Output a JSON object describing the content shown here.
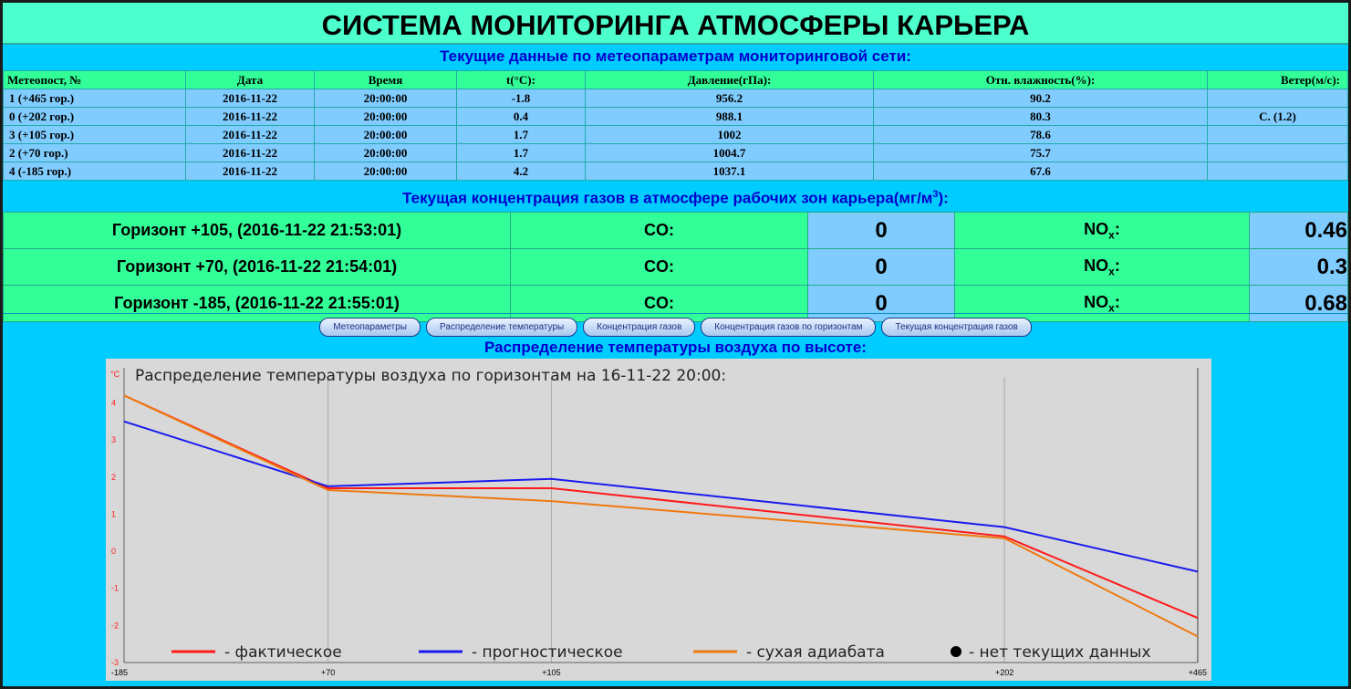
{
  "title": "СИСТЕМА МОНИТОРИНГА АТМОСФЕРЫ КАРЬЕРА",
  "meteo": {
    "heading": "Текущие данные по метеопараметрам мониторинговой сети:",
    "columns": [
      "Метеопост, №",
      "Дата",
      "Время",
      "t(°C):",
      "Давление(гПа):",
      "Отн. влажность(%):",
      "Ветер(м/с):"
    ],
    "rows": [
      [
        "1 (+465 гор.)",
        "2016-11-22",
        "20:00:00",
        "-1.8",
        "956.2",
        "90.2",
        ""
      ],
      [
        "0 (+202 гор.)",
        "2016-11-22",
        "20:00:00",
        "0.4",
        "988.1",
        "80.3",
        "С. (1.2)"
      ],
      [
        "3 (+105 гор.)",
        "2016-11-22",
        "20:00:00",
        "1.7",
        "1002",
        "78.6",
        ""
      ],
      [
        "2 (+70 гор.)",
        "2016-11-22",
        "20:00:00",
        "1.7",
        "1004.7",
        "75.7",
        ""
      ],
      [
        "4 (-185 гор.)",
        "2016-11-22",
        "20:00:00",
        "4.2",
        "1037.1",
        "67.6",
        ""
      ]
    ]
  },
  "gas": {
    "heading": "Текущая концентрация газов в атмосфере рабочих зон карьера(мг/м",
    "heading_sup": "3",
    "heading_end": "):",
    "co_label": "CO:",
    "nox_label": "NO",
    "nox_sub": "x",
    "nox_colon": ":",
    "rows": [
      {
        "name": "Горизонт +105, (2016-11-22 21:53:01)",
        "co": "0",
        "nox": "0.46"
      },
      {
        "name": "Горизонт +70, (2016-11-22 21:54:01)",
        "co": "0",
        "nox": "0.3"
      },
      {
        "name": "Горизонт -185, (2016-11-22 21:55:01)",
        "co": "0",
        "nox": "0.68"
      }
    ]
  },
  "nav": {
    "buttons": [
      "Метеопараметры",
      "Распределение температуры",
      "Концентрация газов",
      "Концентрация газов по горизонтам",
      "Текущая концентрация газов"
    ]
  },
  "chart_heading": "Распределение температуры воздуха по высоте:",
  "chart_data": {
    "type": "line",
    "title": "Распределение температуры воздуха по горизонтам на 16-11-22 20:00:",
    "ylabel": "°C",
    "x": [
      "-185",
      "+70",
      "+105",
      "+202",
      "+465"
    ],
    "x_positions": [
      -185,
      70,
      105,
      202,
      465
    ],
    "x_display": [
      0,
      1.9,
      3.98,
      8.2,
      10
    ],
    "ylim": [
      -3,
      4.7
    ],
    "yticks": [
      "-3",
      "-2",
      "-1",
      "0",
      "1",
      "2",
      "3",
      "4"
    ],
    "series": [
      {
        "name": "- фактическое",
        "color": "#ff1a1a",
        "values": [
          4.2,
          1.7,
          1.7,
          0.4,
          -1.8
        ]
      },
      {
        "name": "- прогностическое",
        "color": "#1a1aee",
        "values": [
          3.5,
          1.75,
          1.95,
          0.65,
          -0.55
        ]
      },
      {
        "name": "- сухая адиабата",
        "color": "#ee7a10",
        "values": [
          4.2,
          1.65,
          1.35,
          0.35,
          -2.3
        ]
      }
    ],
    "legend_extra": "- нет текущих данных",
    "legend_placement": "bottom"
  }
}
